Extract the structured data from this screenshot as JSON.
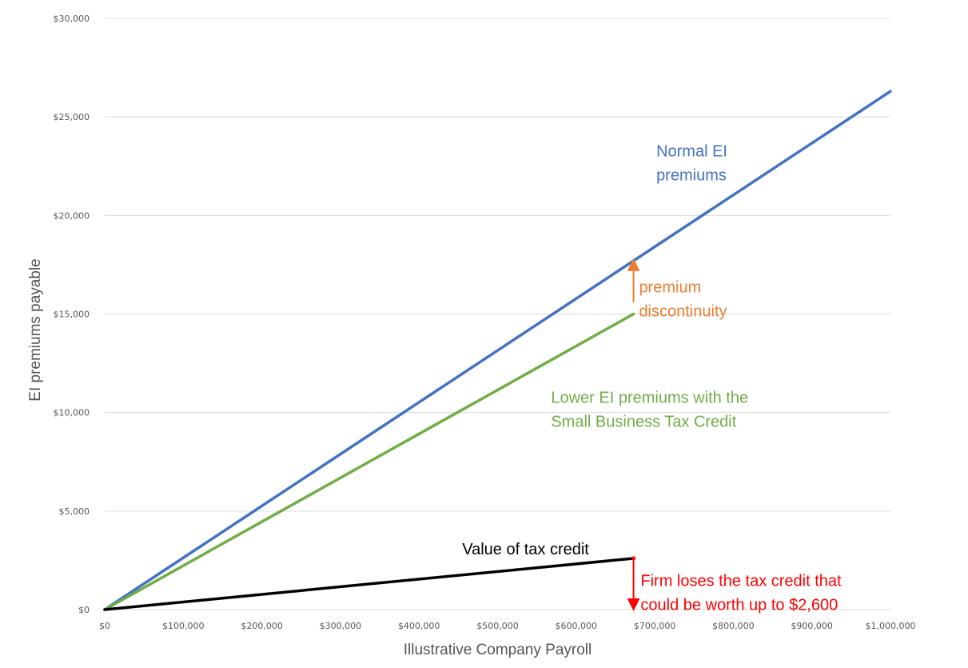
{
  "chart_data": {
    "type": "line",
    "title": "",
    "xlabel": "Illustrative Company Payroll",
    "ylabel": "EI premiums payable",
    "xlim": [
      0,
      1000000
    ],
    "ylim": [
      0,
      30000
    ],
    "grid": true,
    "x_ticks": [
      0,
      100000,
      200000,
      300000,
      400000,
      500000,
      600000,
      700000,
      800000,
      900000,
      1000000
    ],
    "y_ticks": [
      0,
      5000,
      10000,
      15000,
      20000,
      25000,
      30000
    ],
    "x_tick_labels": [
      "$0",
      "$100,000",
      "$200,000",
      "$300,000",
      "$400,000",
      "$500,000",
      "$600,000",
      "$700,000",
      "$800,000",
      "$900,000",
      "$1,000,000"
    ],
    "y_tick_labels": [
      "$0",
      "$5,000",
      "$10,000",
      "$15,000",
      "$20,000",
      "$25,000",
      "$30,000"
    ],
    "series": [
      {
        "points": [
          [
            0,
            0
          ],
          [
            1000000,
            26300
          ]
        ],
        "color": "#4472C4"
      },
      {
        "points": [
          [
            0,
            0
          ],
          [
            673000,
            15000
          ]
        ],
        "color": "#70AD47"
      },
      {
        "points": [
          [
            0,
            0
          ],
          [
            673000,
            2600
          ]
        ],
        "color": "#000000"
      }
    ],
    "arrows": [
      {
        "x": 673000,
        "from": 15600,
        "to": 17500,
        "color": "#ED7D31"
      },
      {
        "x": 673000,
        "from": 2600,
        "to": 250,
        "color": "#FF0000"
      }
    ],
    "annotations": [
      {
        "lines": [
          "Normal EI",
          "premiums"
        ],
        "color": "#4472C4",
        "x": 702000,
        "y": 23000
      },
      {
        "lines": [
          "premium",
          "discontinuity"
        ],
        "color": "#ED7D31",
        "x": 680000,
        "y": 16100
      },
      {
        "lines": [
          "Lower EI premiums with the",
          "Small Business Tax Credit"
        ],
        "color": "#70AD47",
        "x": 568000,
        "y": 10500
      },
      {
        "lines": [
          "Value of tax credit"
        ],
        "color": "#000000",
        "x": 455000,
        "y": 2800
      },
      {
        "lines": [
          "Firm loses the tax credit that",
          "could be worth up to $2,600"
        ],
        "color": "#FF0000",
        "x": 682000,
        "y": 1200
      }
    ],
    "grid_color": "#D9D9D9"
  }
}
